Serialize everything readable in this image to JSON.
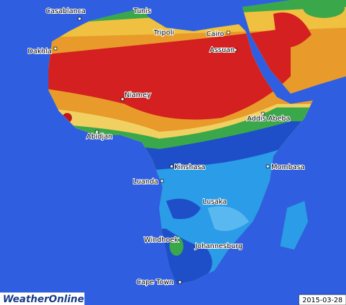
{
  "cities": [
    {
      "name": "Casablanca"
    },
    {
      "name": "Tunis"
    },
    {
      "name": "Tripoli"
    },
    {
      "name": "Cairo"
    },
    {
      "name": "Assuan"
    },
    {
      "name": "Dakhla"
    },
    {
      "name": "Niamey"
    },
    {
      "name": "Abidjan"
    },
    {
      "name": "Addis Abeba"
    },
    {
      "name": "Kinshasa"
    },
    {
      "name": "Mombasa"
    },
    {
      "name": "Luanda"
    },
    {
      "name": "Lusaka"
    },
    {
      "name": "Windhoek"
    },
    {
      "name": "Johannesburg"
    },
    {
      "name": "Cape Town"
    }
  ],
  "date": "2015-03-28",
  "logo": "WeatherOnline"
}
